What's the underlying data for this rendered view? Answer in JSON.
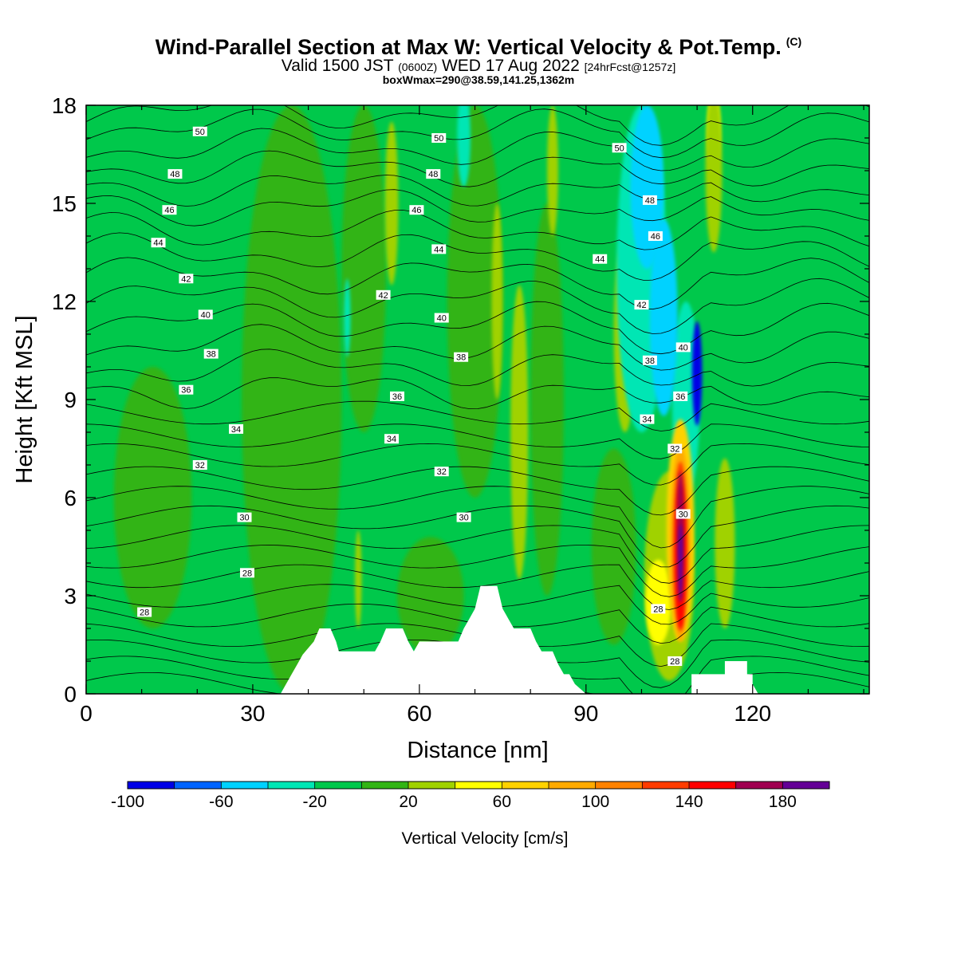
{
  "title": {
    "main": "Wind-Parallel Section at Max W: Vertical Velocity & Pot.Temp.",
    "copyright": "(C)",
    "valid_prefix": "Valid 1500 JST",
    "zulu": "(0600Z)",
    "valid_date": "WED 17 Aug 2022",
    "forecast": "[24hrFcst@1257z]",
    "box": "boxWmax=290@38.59,141.25,1362m"
  },
  "chart_data": {
    "type": "heatmap",
    "xlabel": "Distance [nm]",
    "ylabel": "Height [Kft MSL]",
    "xlim": [
      0,
      141
    ],
    "ylim": [
      0,
      18
    ],
    "xticks": [
      0,
      30,
      60,
      90,
      120
    ],
    "yticks": [
      0,
      3,
      6,
      9,
      12,
      15,
      18
    ],
    "colorbar": {
      "label": "Vertical Velocity [cm/s]",
      "tick_labels": [
        "-100",
        "-60",
        "-20",
        "20",
        "60",
        "100",
        "140",
        "180"
      ],
      "tick_values": [
        -100,
        -60,
        -20,
        20,
        60,
        100,
        140,
        180
      ],
      "bounds": [
        -100,
        200
      ],
      "colors": [
        "#0000e6",
        "#0064ff",
        "#00d2ff",
        "#00e6b4",
        "#00c84b",
        "#32b414",
        "#a0d200",
        "#ffff00",
        "#ffd200",
        "#ffaa00",
        "#ff8200",
        "#ff3c00",
        "#ff0000",
        "#a00050",
        "#640096"
      ]
    },
    "terrain": [
      [
        0,
        0
      ],
      [
        35,
        0
      ],
      [
        36,
        0.3
      ],
      [
        37,
        0.6
      ],
      [
        38,
        0.9
      ],
      [
        39,
        1.2
      ],
      [
        41,
        1.6
      ],
      [
        42,
        2.0
      ],
      [
        44,
        2.0
      ],
      [
        45,
        1.6
      ],
      [
        45.5,
        1.3
      ],
      [
        52,
        1.3
      ],
      [
        53,
        1.6
      ],
      [
        54,
        2.0
      ],
      [
        57,
        2.0
      ],
      [
        58,
        1.6
      ],
      [
        59,
        1.3
      ],
      [
        60,
        1.6
      ],
      [
        67,
        1.6
      ],
      [
        68,
        2.0
      ],
      [
        69,
        2.3
      ],
      [
        70,
        2.6
      ],
      [
        71,
        3.3
      ],
      [
        74,
        3.3
      ],
      [
        75,
        2.6
      ],
      [
        76,
        2.3
      ],
      [
        77,
        2.0
      ],
      [
        80,
        2.0
      ],
      [
        81,
        1.6
      ],
      [
        82,
        1.3
      ],
      [
        84,
        1.3
      ],
      [
        85,
        0.9
      ],
      [
        86,
        0.6
      ],
      [
        87,
        0.6
      ],
      [
        88,
        0.3
      ],
      [
        90,
        0
      ],
      [
        109,
        0
      ],
      [
        109,
        0.6
      ],
      [
        115,
        0.6
      ],
      [
        115,
        1.0
      ],
      [
        119,
        1.0
      ],
      [
        119,
        0.6
      ],
      [
        120,
        0.6
      ],
      [
        120,
        0.3
      ],
      [
        121,
        0
      ],
      [
        141,
        0
      ]
    ],
    "theta_contour_labels": [
      {
        "x": 20.5,
        "y": 17.2,
        "text": "50"
      },
      {
        "x": 63.5,
        "y": 17.0,
        "text": "50"
      },
      {
        "x": 96.0,
        "y": 16.7,
        "text": "50"
      },
      {
        "x": 16.0,
        "y": 15.9,
        "text": "48"
      },
      {
        "x": 62.5,
        "y": 15.9,
        "text": "48"
      },
      {
        "x": 101.5,
        "y": 15.1,
        "text": "48"
      },
      {
        "x": 15.0,
        "y": 14.8,
        "text": "46"
      },
      {
        "x": 59.5,
        "y": 14.8,
        "text": "46"
      },
      {
        "x": 102.5,
        "y": 14.0,
        "text": "46"
      },
      {
        "x": 13.0,
        "y": 13.8,
        "text": "44"
      },
      {
        "x": 63.5,
        "y": 13.6,
        "text": "44"
      },
      {
        "x": 92.5,
        "y": 13.3,
        "text": "44"
      },
      {
        "x": 18.0,
        "y": 12.7,
        "text": "42"
      },
      {
        "x": 53.5,
        "y": 12.2,
        "text": "42"
      },
      {
        "x": 100.0,
        "y": 11.9,
        "text": "42"
      },
      {
        "x": 21.5,
        "y": 11.6,
        "text": "40"
      },
      {
        "x": 64.0,
        "y": 11.5,
        "text": "40"
      },
      {
        "x": 107.5,
        "y": 10.6,
        "text": "40"
      },
      {
        "x": 22.5,
        "y": 10.4,
        "text": "38"
      },
      {
        "x": 67.5,
        "y": 10.3,
        "text": "38"
      },
      {
        "x": 101.5,
        "y": 10.2,
        "text": "38"
      },
      {
        "x": 18.0,
        "y": 9.3,
        "text": "36"
      },
      {
        "x": 56.0,
        "y": 9.1,
        "text": "36"
      },
      {
        "x": 107.0,
        "y": 9.1,
        "text": "36"
      },
      {
        "x": 27.0,
        "y": 8.1,
        "text": "34"
      },
      {
        "x": 55.0,
        "y": 7.8,
        "text": "34"
      },
      {
        "x": 101.0,
        "y": 8.4,
        "text": "34"
      },
      {
        "x": 20.5,
        "y": 7.0,
        "text": "32"
      },
      {
        "x": 64.0,
        "y": 6.8,
        "text": "32"
      },
      {
        "x": 106.0,
        "y": 7.5,
        "text": "32"
      },
      {
        "x": 28.5,
        "y": 5.4,
        "text": "30"
      },
      {
        "x": 68.0,
        "y": 5.4,
        "text": "30"
      },
      {
        "x": 107.5,
        "y": 5.5,
        "text": "30"
      },
      {
        "x": 29.0,
        "y": 3.7,
        "text": "28"
      },
      {
        "x": 10.5,
        "y": 2.5,
        "text": "28"
      },
      {
        "x": 103.0,
        "y": 2.6,
        "text": "28"
      },
      {
        "x": 106.0,
        "y": 1.0,
        "text": "28"
      }
    ]
  }
}
